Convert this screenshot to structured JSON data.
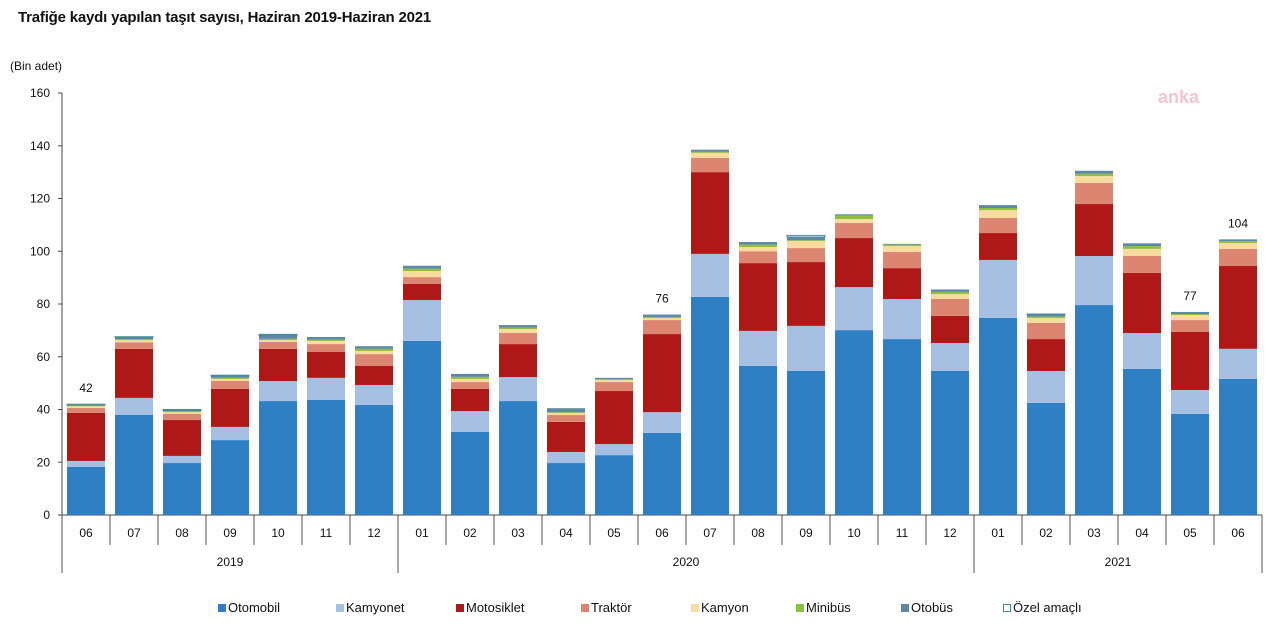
{
  "chart_data": {
    "type": "bar",
    "stacked": true,
    "title": "Trafiğe kaydı yapılan taşıt sayısı, Haziran 2019-Haziran 2021",
    "ylabel": "(Bin adet)",
    "xlabel": "",
    "ylim": [
      0,
      160
    ],
    "yticks": [
      0,
      20,
      40,
      60,
      80,
      100,
      120,
      140,
      160
    ],
    "grid": false,
    "legend_position": "bottom",
    "categories": [
      "06",
      "07",
      "08",
      "09",
      "10",
      "11",
      "12",
      "01",
      "02",
      "03",
      "04",
      "05",
      "06",
      "07",
      "08",
      "09",
      "10",
      "11",
      "12",
      "01",
      "02",
      "03",
      "04",
      "05",
      "06"
    ],
    "years": [
      {
        "label": "2019",
        "count": 7
      },
      {
        "label": "2020",
        "count": 12
      },
      {
        "label": "2021",
        "count": 6
      }
    ],
    "series": [
      {
        "name": "Otomobil",
        "color": "#2e7fc4",
        "values": [
          18.2,
          38,
          19.7,
          28.4,
          43.2,
          43.6,
          41.7,
          66,
          31.5,
          43.2,
          19.7,
          22.7,
          31.1,
          82.7,
          56.5,
          54.6,
          70.1,
          66.7,
          54.6,
          74.7,
          42.5,
          79.6,
          55.4,
          38.3,
          51.6
        ]
      },
      {
        "name": "Kamyonet",
        "color": "#a6c0e4",
        "values": [
          2.3,
          6.4,
          2.7,
          5,
          7.6,
          8.4,
          7.6,
          15.5,
          7.9,
          9.1,
          4.2,
          4.2,
          7.9,
          16.3,
          13.3,
          17.1,
          16.3,
          15.2,
          10.6,
          22,
          12.1,
          18.6,
          13.6,
          9.1,
          11.4
        ]
      },
      {
        "name": "Motosiklet",
        "color": "#b01818",
        "values": [
          18.2,
          18.6,
          13.6,
          14.4,
          12.2,
          9.8,
          7.2,
          6.1,
          8.4,
          12.5,
          11.4,
          20.1,
          29.6,
          31,
          25.7,
          24.2,
          18.6,
          11.7,
          10.3,
          10.2,
          12.1,
          19.7,
          22.8,
          22,
          31.4
        ]
      },
      {
        "name": "Traktör",
        "color": "#dc8570",
        "values": [
          1.9,
          2.5,
          2.3,
          3,
          2.6,
          3,
          4.5,
          2.6,
          2.6,
          4.2,
          2.6,
          3.4,
          5.3,
          5.4,
          4.5,
          5.3,
          5.7,
          6.1,
          6.4,
          5.7,
          6.1,
          8,
          6.4,
          4.5,
          6.5
        ]
      },
      {
        "name": "Kamyon",
        "color": "#f8dc9e",
        "values": [
          0.6,
          0.8,
          0.7,
          0.8,
          0.7,
          1.2,
          1.2,
          2.3,
          1.2,
          1.5,
          0.8,
          0.8,
          0.8,
          1.9,
          1.6,
          2.7,
          1.5,
          2.3,
          1.9,
          3,
          1.9,
          2.6,
          2.7,
          1.9,
          2.2
        ]
      },
      {
        "name": "Minibüs",
        "color": "#8fbf3c",
        "values": [
          0.3,
          0.4,
          0.3,
          0.4,
          0.5,
          0.5,
          0.8,
          0.9,
          0.8,
          0.5,
          0.3,
          0.3,
          0.4,
          0.4,
          0.9,
          0.3,
          1.3,
          0.5,
          0.8,
          0.8,
          0.5,
          0.9,
          1.1,
          0.4,
          0.7
        ]
      },
      {
        "name": "Otobüs",
        "color": "#5d88a8",
        "values": [
          0.4,
          0.8,
          0.6,
          0.9,
          1.6,
          1,
          1,
          1.1,
          1.1,
          1,
          1.5,
          0.5,
          0.9,
          0.8,
          1,
          1.2,
          0.5,
          0.3,
          0.9,
          1.1,
          0.8,
          1.1,
          1,
          0.8,
          0.7
        ]
      },
      {
        "name": "Özel amaçlı",
        "color": "#ffffff",
        "stroke": "#4a8a9a",
        "values": [
          0.1,
          0.1,
          0.1,
          0.1,
          0.1,
          0,
          0,
          0,
          0,
          0,
          0,
          0,
          0,
          0,
          0,
          0.6,
          0,
          0,
          0,
          0,
          0.2,
          0,
          0,
          0,
          0
        ]
      }
    ],
    "data_labels": [
      {
        "index": 0,
        "text": "42"
      },
      {
        "index": 12,
        "text": "76"
      },
      {
        "index": 23,
        "text": "77"
      },
      {
        "index": 24,
        "text": "104"
      }
    ]
  },
  "watermark": "anka"
}
